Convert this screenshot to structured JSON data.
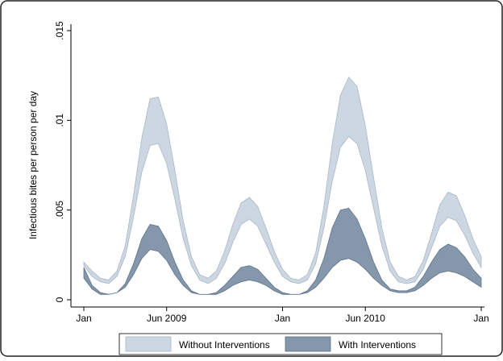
{
  "chart_data": {
    "type": "range-area",
    "y_label": "Infectious bites per person per day",
    "xlim": [
      0,
      24
    ],
    "xticks": [
      {
        "value": 0,
        "label": "Jan"
      },
      {
        "value": 5,
        "label": "Jun 2009"
      },
      {
        "value": 12,
        "label": "Jan"
      },
      {
        "value": 17,
        "label": "Jun 2010"
      },
      {
        "value": 24,
        "label": "Jan"
      }
    ],
    "ylim": [
      0,
      0.015
    ],
    "yticks": [
      {
        "value": 0,
        "label": "0"
      },
      {
        "value": 0.005,
        "label": ".005"
      },
      {
        "value": 0.01,
        "label": ".01"
      },
      {
        "value": 0.015,
        "label": ".015"
      }
    ],
    "x": [
      0,
      0.5,
      1,
      1.5,
      2,
      2.5,
      3,
      3.5,
      4,
      4.5,
      5,
      5.5,
      6,
      6.5,
      7,
      7.5,
      8,
      8.5,
      9,
      9.5,
      10,
      10.5,
      11,
      11.5,
      12,
      12.5,
      13,
      13.5,
      14,
      14.5,
      15,
      15.5,
      16,
      16.5,
      17,
      17.5,
      18,
      18.5,
      19,
      19.5,
      20,
      20.5,
      21,
      21.5,
      22,
      22.5,
      23,
      23.5,
      24
    ],
    "series": [
      {
        "name": "Without Interventions",
        "color": "#cdd7e1",
        "edge_color": "#a8b7c6",
        "upper": [
          0.0021,
          0.0016,
          0.0012,
          0.0011,
          0.0016,
          0.003,
          0.0058,
          0.009,
          0.0112,
          0.0113,
          0.0098,
          0.0072,
          0.0044,
          0.0024,
          0.0014,
          0.0012,
          0.0016,
          0.0027,
          0.0042,
          0.0054,
          0.0057,
          0.0052,
          0.004,
          0.0027,
          0.0017,
          0.0012,
          0.0011,
          0.0014,
          0.0026,
          0.0052,
          0.0087,
          0.0114,
          0.0124,
          0.0119,
          0.0097,
          0.0068,
          0.004,
          0.0021,
          0.0013,
          0.0011,
          0.0013,
          0.0022,
          0.0037,
          0.0053,
          0.006,
          0.0058,
          0.0047,
          0.0034,
          0.0024
        ],
        "lower": [
          0.0019,
          0.0013,
          0.001,
          0.0009,
          0.0013,
          0.0024,
          0.0046,
          0.0071,
          0.0086,
          0.0087,
          0.0076,
          0.0056,
          0.0034,
          0.0019,
          0.0011,
          0.0009,
          0.0012,
          0.002,
          0.0032,
          0.0042,
          0.0045,
          0.0041,
          0.0031,
          0.0021,
          0.0013,
          0.001,
          0.0009,
          0.0011,
          0.002,
          0.004,
          0.0066,
          0.0085,
          0.0091,
          0.0087,
          0.0072,
          0.0051,
          0.003,
          0.0016,
          0.001,
          0.0009,
          0.001,
          0.0017,
          0.0029,
          0.0041,
          0.0046,
          0.0044,
          0.0036,
          0.0026,
          0.0018
        ]
      },
      {
        "name": "With Interventions",
        "color": "#8597ab",
        "edge_color": "#5d7088",
        "upper": [
          0.0018,
          0.0008,
          0.0004,
          0.0003,
          0.0004,
          0.0009,
          0.002,
          0.0034,
          0.0042,
          0.0041,
          0.0033,
          0.0021,
          0.0011,
          0.0005,
          0.0003,
          0.0003,
          0.0004,
          0.0008,
          0.0013,
          0.0018,
          0.0019,
          0.0017,
          0.0012,
          0.0007,
          0.0004,
          0.0003,
          0.0003,
          0.0005,
          0.0011,
          0.0023,
          0.004,
          0.005,
          0.0051,
          0.0045,
          0.0034,
          0.0021,
          0.0011,
          0.0006,
          0.0005,
          0.0005,
          0.0007,
          0.0013,
          0.0021,
          0.0028,
          0.0031,
          0.0029,
          0.0024,
          0.0017,
          0.0012
        ],
        "lower": [
          0.0012,
          0.0006,
          0.0003,
          0.0003,
          0.0004,
          0.0007,
          0.0014,
          0.0023,
          0.0028,
          0.0027,
          0.0022,
          0.0014,
          0.0008,
          0.0004,
          0.0003,
          0.0003,
          0.0003,
          0.0005,
          0.0008,
          0.001,
          0.0011,
          0.001,
          0.0008,
          0.0005,
          0.0003,
          0.0003,
          0.0003,
          0.0004,
          0.0007,
          0.0012,
          0.0018,
          0.0022,
          0.0023,
          0.0021,
          0.0017,
          0.0012,
          0.0008,
          0.0005,
          0.0004,
          0.0004,
          0.0005,
          0.0008,
          0.0012,
          0.0015,
          0.0016,
          0.0015,
          0.0013,
          0.001,
          0.0007
        ]
      }
    ],
    "legend": "bottom"
  }
}
